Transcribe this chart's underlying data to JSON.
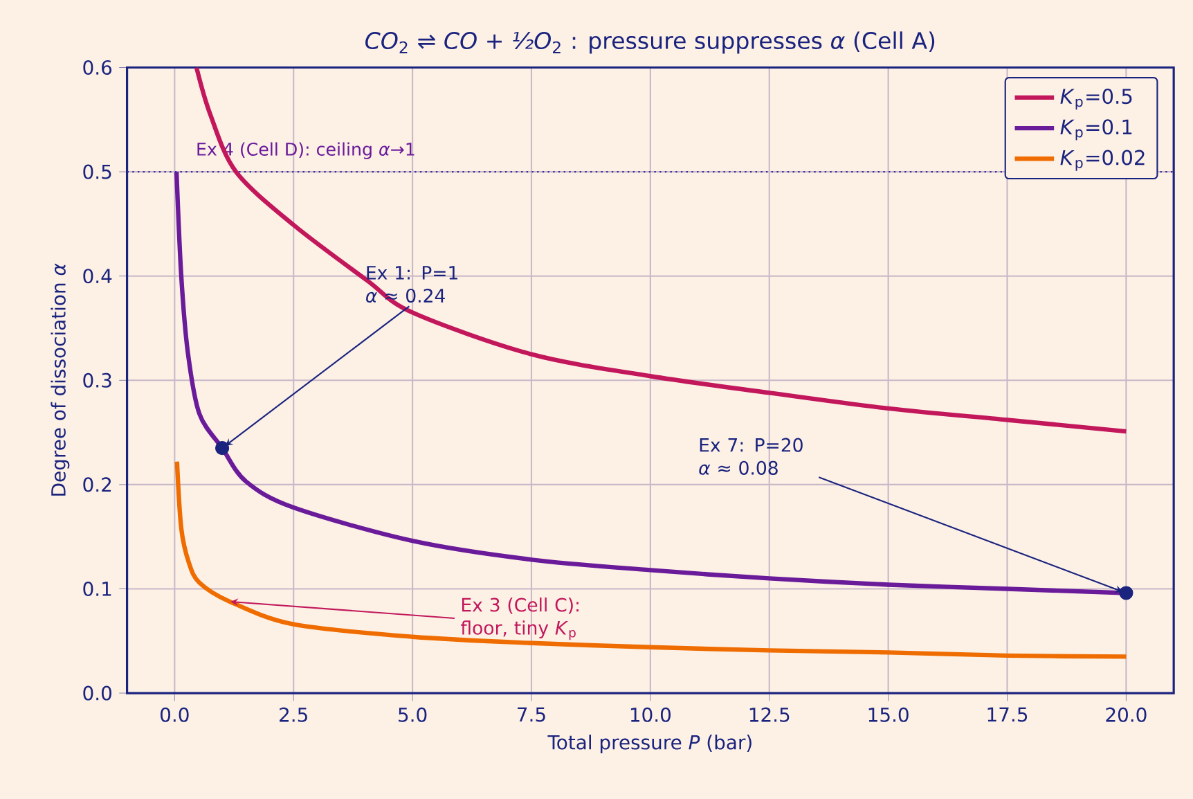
{
  "chart_data": {
    "type": "line",
    "title": "*CO*$_{2}$ ⇌ *CO* + *½O*$_{2}$ : pressure suppresses *α* (Cell A)",
    "xlabel": "Total pressure *P*  (bar)",
    "ylabel": "Degree of dissociation  *α*",
    "xlim": [
      -1,
      21
    ],
    "ylim": [
      0,
      0.6
    ],
    "xticks": [
      {
        "value": 0,
        "label": "0.0"
      },
      2.5,
      {
        "value": 5,
        "label": "5.0"
      },
      7.5,
      {
        "value": 10,
        "label": "10.0"
      },
      12.5,
      {
        "value": 15,
        "label": "15.0"
      },
      17.5,
      {
        "value": 20,
        "label": "20.0"
      }
    ],
    "yticks": [
      {
        "value": 0,
        "label": "0.0"
      },
      0.1,
      0.2,
      0.3,
      0.4,
      0.5,
      0.6
    ],
    "grid": true,
    "legend": "top right",
    "line_style": "solid",
    "series": [
      {
        "name": "*K*$_{p}$=0.5",
        "color": "#c2185b",
        "x": [
          0.46,
          0.75,
          1.29,
          2.5,
          4.04,
          5,
          7.5,
          10,
          12.5,
          15,
          17.5,
          20
        ],
        "values": [
          0.6,
          0.555,
          0.5,
          0.449,
          0.396,
          0.365,
          0.325,
          0.304,
          0.288,
          0.273,
          0.262,
          0.251
        ]
      },
      {
        "name": "*K*$_{p}$=0.1",
        "color": "#6a1b9a",
        "x": [
          0.04,
          0.14,
          0.28,
          0.52,
          1,
          1.5,
          2.5,
          5,
          7.5,
          10,
          12.5,
          15,
          17.5,
          20
        ],
        "values": [
          0.5,
          0.4,
          0.326,
          0.268,
          0.235,
          0.203,
          0.178,
          0.146,
          0.128,
          0.118,
          0.11,
          0.104,
          0.1,
          0.096
        ]
      },
      {
        "name": "*K*$_{p}$=0.02",
        "color": "#ef6c00",
        "x": [
          0.05,
          0.14,
          0.3,
          0.52,
          1.15,
          2.5,
          5,
          7.5,
          10,
          12.5,
          15,
          17.5,
          20
        ],
        "values": [
          0.222,
          0.158,
          0.125,
          0.106,
          0.088,
          0.066,
          0.054,
          0.048,
          0.044,
          0.041,
          0.039,
          0.036,
          0.035
        ]
      },
      {
        "type": "scatter",
        "marker": "circle",
        "color": "#1a237e",
        "x": [
          1,
          20
        ],
        "values": [
          0.235,
          0.096
        ]
      }
    ],
    "ref_lines": [
      {
        "axis": "y",
        "value": 0.5,
        "label": "Ex 4 (Cell D): ceiling *α*→1",
        "color": "#3a2a9a",
        "line_style": "dotted"
      }
    ],
    "annotations": [
      {
        "text": "Ex 1: P=1 *α* ≈ 0.24",
        "x": 1,
        "y": 0.235
      },
      {
        "text": "Ex 7: P=20 *α* ≈ 0.08",
        "x": 20,
        "y": 0.096
      },
      {
        "text": "Ex 3 (Cell C): floor, tiny *K*$_{p}$",
        "x": 1.1,
        "y": 0.088
      }
    ]
  }
}
